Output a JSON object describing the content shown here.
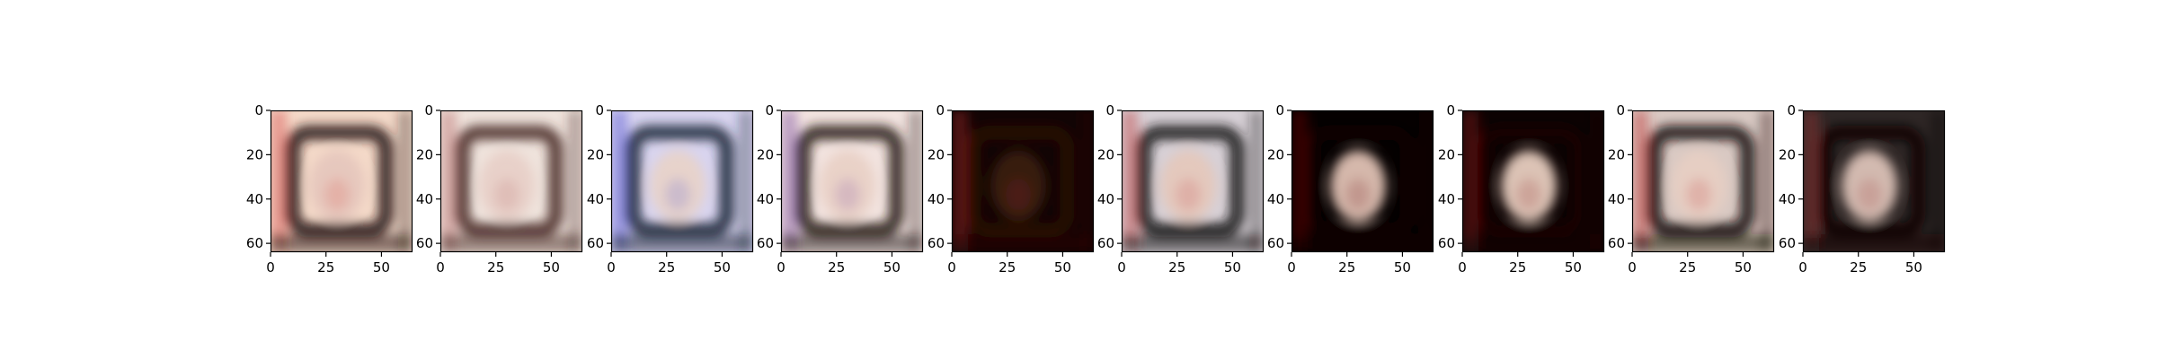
{
  "chart_data": {
    "type": "image-grid",
    "panel_count": 10,
    "image_size": [
      64,
      64
    ],
    "xlim": [
      0,
      64
    ],
    "ylim": [
      64,
      0
    ],
    "x_ticks": [
      0,
      25,
      50
    ],
    "y_ticks": [
      0,
      20,
      40,
      60
    ],
    "x_tick_labels": [
      "0",
      "25",
      "50"
    ],
    "y_tick_labels": [
      "0",
      "20",
      "40",
      "60"
    ],
    "panels": [
      {
        "style": "light-warm",
        "bg": "#f4d9c8",
        "ring": "#2a1a14",
        "center": "#e6c7bd",
        "accent": "#d84a4a"
      },
      {
        "style": "light",
        "bg": "#efe3dc",
        "ring": "#4a2e2a",
        "center": "#e8d0c8",
        "accent": "#b86a6a"
      },
      {
        "style": "light-cool",
        "bg": "#d8d4ef",
        "ring": "#1d2a3a",
        "center": "#e8d3c9",
        "accent": "#5050d0"
      },
      {
        "style": "light",
        "bg": "#f2e3df",
        "ring": "#2a1d1b",
        "center": "#e9d1c6",
        "accent": "#7a4aa0"
      },
      {
        "style": "dark",
        "bg": "#120404",
        "ring": "#2a0906",
        "center": "#3a1a10",
        "accent": "#a02020"
      },
      {
        "style": "mixed",
        "bg": "#d7d0d6",
        "ring": "#1a1414",
        "center": "#e5c8bc",
        "accent": "#c04040"
      },
      {
        "style": "dark",
        "bg": "#050000",
        "ring": "#120303",
        "center": "#e0c2b4",
        "accent": "#6a0a0a"
      },
      {
        "style": "dark",
        "bg": "#0c0202",
        "ring": "#1a0605",
        "center": "#e7cdbf",
        "accent": "#8a1a1a"
      },
      {
        "style": "mixed",
        "bg": "#d9c9c3",
        "ring": "#140c0a",
        "center": "#e7cfc3",
        "accent": "#c03030"
      },
      {
        "style": "dark-mixed",
        "bg": "#2e2625",
        "ring": "#0c0707",
        "center": "#dbc2b7",
        "accent": "#9a3030"
      }
    ]
  }
}
